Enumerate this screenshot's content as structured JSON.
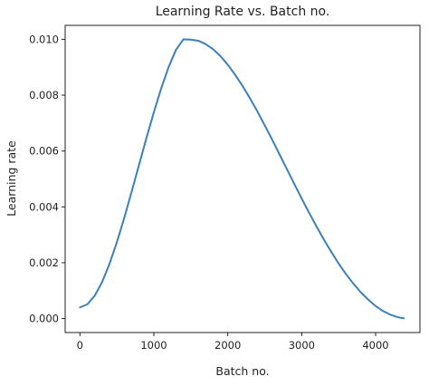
{
  "chart_data": {
    "type": "line",
    "title": "Learning Rate vs. Batch no.",
    "xlabel": "Batch no.",
    "ylabel": "Learning rate",
    "xlim": [
      -200,
      4600
    ],
    "ylim": [
      -0.0005,
      0.0105
    ],
    "xticks": [
      0,
      1000,
      2000,
      3000,
      4000
    ],
    "xtick_labels": [
      "0",
      "1000",
      "2000",
      "3000",
      "4000"
    ],
    "yticks": [
      0.0,
      0.002,
      0.004,
      0.006,
      0.008,
      0.01
    ],
    "ytick_labels": [
      "0.000",
      "0.002",
      "0.004",
      "0.006",
      "0.008",
      "0.010"
    ],
    "grid": false,
    "series": [
      {
        "color": "#3d7fb8",
        "x": [
          0,
          100,
          200,
          300,
          400,
          500,
          600,
          700,
          800,
          900,
          1000,
          1100,
          1200,
          1300,
          1400,
          1500,
          1600,
          1700,
          1800,
          1900,
          2000,
          2100,
          2200,
          2300,
          2400,
          2500,
          2600,
          2700,
          2800,
          2900,
          3000,
          3100,
          3200,
          3300,
          3400,
          3500,
          3600,
          3700,
          3800,
          3900,
          4000,
          4100,
          4200,
          4300,
          4380
        ],
        "y": [
          0.0004,
          0.00051,
          0.00082,
          0.00131,
          0.00196,
          0.00274,
          0.00361,
          0.00455,
          0.00551,
          0.00647,
          0.00739,
          0.00825,
          0.00901,
          0.00963,
          0.01,
          0.00999,
          0.00995,
          0.00983,
          0.00965,
          0.0094,
          0.00909,
          0.00873,
          0.00833,
          0.00789,
          0.00742,
          0.00692,
          0.00641,
          0.00588,
          0.00535,
          0.00482,
          0.0043,
          0.00379,
          0.0033,
          0.00283,
          0.00239,
          0.00197,
          0.00159,
          0.00125,
          0.00094,
          0.00068,
          0.00045,
          0.00027,
          0.00014,
          5e-05,
          1e-05
        ]
      }
    ]
  }
}
